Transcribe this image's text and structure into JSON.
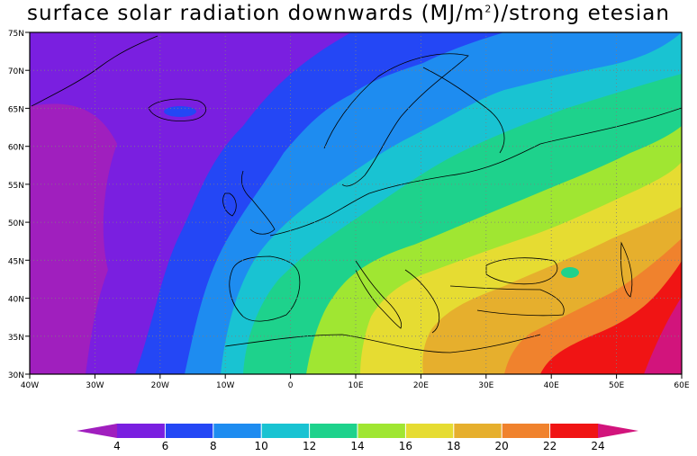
{
  "title": {
    "prefix": "surface solar radiation downwards (MJ/m",
    "superscript": "2",
    "suffix": ")/strong etesian"
  },
  "map": {
    "projection": "lat-lon",
    "lon_range": [
      -40,
      60
    ],
    "lat_range": [
      30,
      75
    ],
    "x_ticks": [
      "40W",
      "30W",
      "20W",
      "10W",
      "0",
      "10E",
      "20E",
      "30E",
      "40E",
      "50E",
      "60E"
    ],
    "y_ticks": [
      "75N",
      "70N",
      "65N",
      "60N",
      "55N",
      "50N",
      "45N",
      "40N",
      "35N",
      "30N"
    ],
    "gridlines": "dotted",
    "field": "surface solar radiation downwards",
    "units": "MJ/m2",
    "trend": "values increase from northwest (about 4-6) to southeast (about 22-24)"
  },
  "colorbar": {
    "labels": [
      "4",
      "6",
      "8",
      "10",
      "12",
      "14",
      "16",
      "18",
      "20",
      "22",
      "24"
    ],
    "under_color": "#a01fbe",
    "over_color": "#d2147c",
    "colors": [
      "#7a1fe0",
      "#2447f5",
      "#1e8cf0",
      "#19c3d2",
      "#1ed28c",
      "#a0e632",
      "#e6dc32",
      "#e6af2d",
      "#f0822d",
      "#f01414"
    ]
  }
}
